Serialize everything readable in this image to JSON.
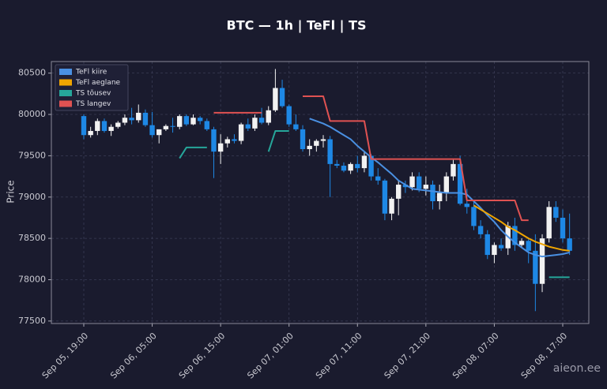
{
  "chart_data": {
    "type": "candlestick",
    "title": "BTC — 1h  |  TeFl  |  TS",
    "ylabel": "Price",
    "watermark": "aieon.ee",
    "categories": [
      "Sep 05, 19:00",
      null,
      null,
      null,
      null,
      null,
      null,
      null,
      null,
      null,
      "Sep 06, 05:00",
      null,
      null,
      null,
      null,
      null,
      null,
      null,
      null,
      null,
      "Sep 06, 15:00",
      null,
      null,
      null,
      null,
      null,
      null,
      null,
      null,
      null,
      "Sep 07, 01:00",
      null,
      null,
      null,
      null,
      null,
      null,
      null,
      null,
      null,
      "Sep 07, 11:00",
      null,
      null,
      null,
      null,
      null,
      null,
      null,
      null,
      null,
      "Sep 07, 21:00",
      null,
      null,
      null,
      null,
      null,
      null,
      null,
      null,
      null,
      "Sep 08, 07:00",
      null,
      null,
      null,
      null,
      null,
      null,
      null,
      null,
      null,
      "Sep 08, 17:00",
      null
    ],
    "open": [
      79980,
      79750,
      79800,
      79920,
      79800,
      79850,
      79900,
      79960,
      79930,
      80020,
      79870,
      79750,
      79820,
      79860,
      79850,
      79980,
      79880,
      79960,
      79920,
      79820,
      79550,
      79650,
      79700,
      79680,
      79880,
      79830,
      79960,
      79900,
      80050,
      80320,
      80100,
      79880,
      79820,
      79580,
      79620,
      79680,
      79700,
      79400,
      79380,
      79320,
      79400,
      79350,
      79500,
      79250,
      79200,
      78800,
      78980,
      79150,
      79120,
      79250,
      79100,
      79150,
      78950,
      79050,
      79250,
      79400,
      78920,
      78880,
      78650,
      78550,
      78300,
      78420,
      78380,
      78650,
      78420,
      78470,
      78350,
      77950,
      78500,
      78880,
      78750,
      78500
    ],
    "high": [
      80000,
      79850,
      79950,
      79950,
      79880,
      79920,
      80000,
      80080,
      80120,
      80060,
      80030,
      79820,
      79880,
      79960,
      80000,
      80000,
      80000,
      79980,
      79950,
      79850,
      79760,
      79730,
      79760,
      79900,
      79950,
      80000,
      80080,
      80100,
      80550,
      80420,
      80120,
      80000,
      79870,
      79700,
      79700,
      79750,
      79740,
      79450,
      79420,
      79420,
      79500,
      79560,
      79520,
      79350,
      79220,
      79000,
      79200,
      79200,
      79300,
      79300,
      79250,
      79200,
      79150,
      79300,
      79450,
      79500,
      79100,
      78950,
      78720,
      78600,
      78450,
      78500,
      78700,
      78750,
      78500,
      78500,
      78550,
      78550,
      78950,
      78950,
      78850,
      78800
    ],
    "low": [
      79700,
      79720,
      79750,
      79780,
      79740,
      79830,
      79870,
      79880,
      79900,
      79850,
      79720,
      79650,
      79800,
      79780,
      79820,
      79860,
      79870,
      79880,
      79800,
      79230,
      79400,
      79600,
      79650,
      79640,
      79800,
      79800,
      79880,
      79870,
      80030,
      80080,
      79850,
      79800,
      79550,
      79500,
      79550,
      79600,
      79000,
      79350,
      79300,
      79280,
      79300,
      79300,
      79200,
      79150,
      78720,
      78720,
      78780,
      79050,
      79080,
      79060,
      79020,
      78850,
      78850,
      78950,
      79200,
      78900,
      78800,
      78600,
      78500,
      78250,
      78200,
      78350,
      78300,
      78350,
      78400,
      78200,
      77620,
      77850,
      78450,
      78700,
      78450,
      78300
    ],
    "close": [
      79750,
      79800,
      79920,
      79800,
      79850,
      79900,
      79960,
      79930,
      80020,
      79870,
      79750,
      79820,
      79860,
      79850,
      79980,
      79880,
      79960,
      79920,
      79820,
      79550,
      79650,
      79700,
      79680,
      79880,
      79830,
      79960,
      79900,
      80050,
      80320,
      80100,
      79880,
      79820,
      79580,
      79620,
      79680,
      79700,
      79400,
      79380,
      79320,
      79400,
      79350,
      79500,
      79250,
      79200,
      78800,
      78980,
      79150,
      79120,
      79250,
      79100,
      79150,
      78950,
      79050,
      79250,
      79400,
      78920,
      78880,
      78650,
      78550,
      78300,
      78420,
      78380,
      78650,
      78420,
      78470,
      78350,
      77950,
      78500,
      78880,
      78750,
      78500,
      78350
    ],
    "up_color": "#f2f2f2",
    "down_color": "#1e88e5",
    "series": [
      {
        "name": "TeFl kiire",
        "color": "#4a90e2",
        "values": [
          null,
          null,
          null,
          null,
          null,
          null,
          null,
          null,
          null,
          null,
          null,
          null,
          null,
          null,
          null,
          null,
          null,
          null,
          null,
          null,
          null,
          null,
          null,
          null,
          null,
          null,
          null,
          null,
          null,
          null,
          null,
          null,
          null,
          79950,
          79920,
          79890,
          79850,
          79800,
          79750,
          79700,
          79620,
          79550,
          79480,
          79420,
          79350,
          79280,
          79200,
          79150,
          79100,
          79090,
          79080,
          79070,
          79060,
          79050,
          79050,
          79050,
          79030,
          78950,
          78870,
          78780,
          78700,
          78600,
          78520,
          78450,
          78390,
          78330,
          78300,
          78280,
          78290,
          78300,
          78310,
          78330
        ]
      },
      {
        "name": "TeFl aeglane",
        "color": "#f0a500",
        "values": [
          null,
          null,
          null,
          null,
          null,
          null,
          null,
          null,
          null,
          null,
          null,
          null,
          null,
          null,
          null,
          null,
          null,
          null,
          null,
          null,
          null,
          null,
          null,
          null,
          null,
          null,
          null,
          null,
          null,
          null,
          null,
          null,
          null,
          null,
          null,
          null,
          null,
          null,
          null,
          null,
          null,
          null,
          null,
          null,
          null,
          null,
          null,
          null,
          null,
          null,
          null,
          null,
          null,
          null,
          null,
          null,
          null,
          78900,
          78850,
          78800,
          78750,
          78700,
          78640,
          78600,
          78550,
          78500,
          78460,
          78430,
          78400,
          78380,
          78360,
          78350
        ]
      },
      {
        "name": "TS tõusev",
        "color": "#26a69a",
        "values": [
          null,
          null,
          null,
          null,
          null,
          null,
          null,
          null,
          null,
          null,
          null,
          null,
          null,
          null,
          79470,
          79600,
          79600,
          79600,
          79600,
          null,
          null,
          null,
          null,
          null,
          null,
          null,
          null,
          79550,
          79800,
          79800,
          79800,
          null,
          null,
          null,
          null,
          null,
          null,
          null,
          null,
          null,
          null,
          null,
          null,
          null,
          null,
          null,
          null,
          null,
          null,
          null,
          null,
          null,
          null,
          null,
          null,
          null,
          null,
          null,
          null,
          null,
          null,
          null,
          null,
          null,
          null,
          null,
          null,
          null,
          78030,
          78030,
          78030,
          78030
        ]
      },
      {
        "name": "TS langev",
        "color": "#e05252",
        "values": [
          null,
          null,
          null,
          null,
          null,
          null,
          null,
          null,
          null,
          null,
          null,
          null,
          null,
          null,
          null,
          null,
          null,
          null,
          null,
          80020,
          80020,
          80020,
          80020,
          80020,
          80020,
          80020,
          80020,
          null,
          null,
          null,
          null,
          null,
          80220,
          80220,
          80220,
          80220,
          79920,
          79920,
          79920,
          79920,
          79920,
          79920,
          79460,
          79460,
          79460,
          79460,
          79460,
          79460,
          79460,
          79460,
          79460,
          79460,
          79460,
          79460,
          79460,
          79460,
          78960,
          78960,
          78960,
          78960,
          78960,
          78960,
          78960,
          78960,
          78720,
          78720,
          null,
          null,
          null,
          null,
          null,
          null
        ]
      }
    ],
    "ylim": [
      77470,
      80640
    ],
    "yticks": [
      77500,
      78000,
      78500,
      79000,
      79500,
      80000,
      80500
    ],
    "grid": true,
    "legend": "upper left"
  }
}
